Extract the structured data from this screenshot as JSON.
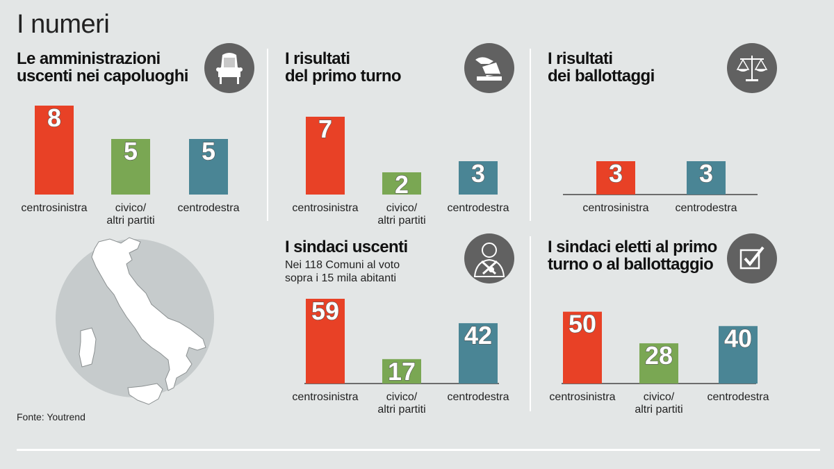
{
  "page": {
    "title": "I numeri",
    "source": "Fonte: Youtrend"
  },
  "colors": {
    "centrosinistra": "#e84126",
    "civico": "#7aa753",
    "centrodestra": "#4a8595",
    "icon_bg": "#616161",
    "background": "#e3e6e6"
  },
  "panels": {
    "amministrazioni": {
      "title_line1": "Le amministrazioni",
      "title_line2": "uscenti nei capoluoghi",
      "icon": "armchair-icon"
    },
    "primo_turno": {
      "title_line1": "I risultati",
      "title_line2": "del primo turno",
      "icon": "ballot-box-icon"
    },
    "ballottaggi": {
      "title_line1": "I risultati",
      "title_line2": "dei ballottaggi",
      "icon": "scales-icon"
    },
    "sindaci_uscenti": {
      "title_line1": "I sindaci uscenti",
      "sub_line1": "Nei 118 Comuni al voto",
      "sub_line2": "sopra i 15 mila abitanti",
      "icon": "mayor-icon"
    },
    "sindaci_eletti": {
      "title_line1": "I sindaci eletti al primo",
      "title_line2": "turno o al ballottaggio",
      "icon": "checkbox-icon"
    }
  },
  "chart_data": [
    {
      "id": "amministrazioni",
      "type": "bar",
      "categories": [
        [
          "centrosinistra"
        ],
        [
          "civico/",
          "altri partiti"
        ],
        [
          "centrodestra"
        ]
      ],
      "values": [
        8,
        5,
        5
      ],
      "colors": [
        "#e84126",
        "#7aa753",
        "#4a8595"
      ],
      "ylim": [
        0,
        8
      ]
    },
    {
      "id": "primo_turno",
      "type": "bar",
      "categories": [
        [
          "centrosinistra"
        ],
        [
          "civico/",
          "altri partiti"
        ],
        [
          "centrodestra"
        ]
      ],
      "values": [
        7,
        2,
        3
      ],
      "colors": [
        "#e84126",
        "#7aa753",
        "#4a8595"
      ],
      "ylim": [
        0,
        8
      ]
    },
    {
      "id": "ballottaggi",
      "type": "bar",
      "categories": [
        [
          "centrosinistra"
        ],
        [
          "centrodestra"
        ]
      ],
      "values": [
        3,
        3
      ],
      "colors": [
        "#e84126",
        "#4a8595"
      ],
      "ylim": [
        0,
        8
      ]
    },
    {
      "id": "sindaci_uscenti",
      "type": "bar",
      "categories": [
        [
          "centrosinistra"
        ],
        [
          "civico/",
          "altri partiti"
        ],
        [
          "centrodestra"
        ]
      ],
      "values": [
        59,
        17,
        42
      ],
      "colors": [
        "#e84126",
        "#7aa753",
        "#4a8595"
      ],
      "ylim": [
        0,
        59
      ]
    },
    {
      "id": "sindaci_eletti",
      "type": "bar",
      "categories": [
        [
          "centrosinistra"
        ],
        [
          "civico/",
          "altri partiti"
        ],
        [
          "centrodestra"
        ]
      ],
      "values": [
        50,
        28,
        40
      ],
      "colors": [
        "#e84126",
        "#7aa753",
        "#4a8595"
      ],
      "ylim": [
        0,
        59
      ]
    }
  ]
}
